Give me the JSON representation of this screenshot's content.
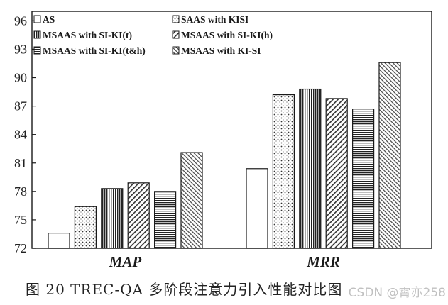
{
  "chart_data": {
    "type": "bar",
    "title": "",
    "xlabel": "",
    "ylabel": "",
    "ylim": [
      72,
      97
    ],
    "yticks": [
      72,
      75,
      78,
      81,
      84,
      87,
      90,
      93,
      96
    ],
    "categories": [
      "MAP",
      "MRR"
    ],
    "series": [
      {
        "name": "AS",
        "values": [
          73.6,
          80.4
        ],
        "pattern": "plain"
      },
      {
        "name": "SAAS with KISI",
        "values": [
          76.4,
          88.2
        ],
        "pattern": "dots"
      },
      {
        "name": "MSAAS with SI-KI(t)",
        "values": [
          78.3,
          88.8
        ],
        "pattern": "vlines"
      },
      {
        "name": "MSAAS with SI-KI(h)",
        "values": [
          78.9,
          87.8
        ],
        "pattern": "diag"
      },
      {
        "name": "MSAAS with SI-KI(t&h)",
        "values": [
          78.0,
          86.7
        ],
        "pattern": "hlines"
      },
      {
        "name": "MSAAS with KI-SI",
        "values": [
          82.1,
          91.6
        ],
        "pattern": "diag2"
      }
    ],
    "grid": false,
    "legend_position": "top-left"
  },
  "caption": "图 20   TREC-QA 多阶段注意力引入性能对比图",
  "watermark": "CSDN @霄亦258",
  "colors": {
    "ink": "#1a1a1a",
    "background": "#ffffff"
  }
}
